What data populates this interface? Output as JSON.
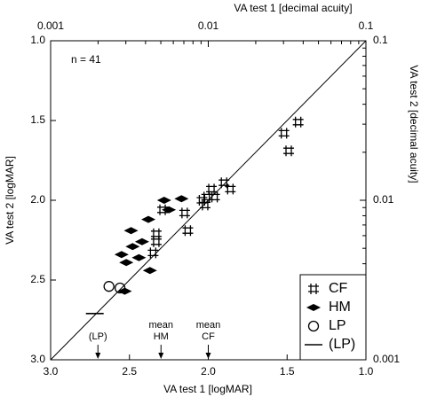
{
  "chart_data": {
    "type": "scatter",
    "xlabel": "VA test 1 [logMAR]",
    "ylabel": "VA test 2 [logMAR]",
    "x2label": "VA test 1 [decimal acuity]",
    "y2label": "VA test 2 [decimal acuity]",
    "xlim": [
      3.0,
      1.0
    ],
    "ylim": [
      3.0,
      1.0
    ],
    "xticks": [
      {
        "value": 3.0,
        "label": "3.0"
      },
      {
        "value": 2.5,
        "label": "2.5"
      },
      {
        "value": 2.0,
        "label": "2.0"
      },
      {
        "value": 1.5,
        "label": "1.5"
      },
      {
        "value": 1.0,
        "label": "1.0"
      }
    ],
    "yticks": [
      {
        "value": 1.0,
        "label": "1.0"
      },
      {
        "value": 1.5,
        "label": "1.5"
      },
      {
        "value": 2.0,
        "label": "2.0"
      },
      {
        "value": 2.5,
        "label": "2.5"
      },
      {
        "value": 3.0,
        "label": "3.0"
      }
    ],
    "x2lim": [
      0.001,
      0.1
    ],
    "x2scale": "log",
    "x2ticks": [
      0.001,
      0.01,
      0.1
    ],
    "x2minorticks": [
      0.002,
      0.003,
      0.004,
      0.005,
      0.006,
      0.007,
      0.008,
      0.009,
      0.02,
      0.03,
      0.04,
      0.05,
      0.06,
      0.07,
      0.08,
      0.09
    ],
    "y2lim": [
      0.001,
      0.1
    ],
    "y2scale": "log",
    "y2ticks": [
      0.001,
      0.01,
      0.1
    ],
    "y2minorticks": [
      0.002,
      0.003,
      0.004,
      0.005,
      0.006,
      0.007,
      0.008,
      0.009,
      0.02,
      0.03,
      0.04,
      0.05,
      0.06,
      0.07,
      0.08,
      0.09
    ],
    "identity_line": true,
    "legend": "lower right",
    "annotation": "n = 41",
    "arrows": [
      {
        "lines": [
          "(LP)"
        ],
        "x": 2.7
      },
      {
        "lines": [
          "mean",
          "HM"
        ],
        "x": 2.3
      },
      {
        "lines": [
          "mean",
          "CF"
        ],
        "x": 2.0
      }
    ],
    "series": [
      {
        "name": "CF",
        "marker": "hash",
        "color": "#000000",
        "x": [
          1.43,
          1.52,
          1.49,
          2.29,
          2.15,
          2.13,
          2.01,
          1.98,
          1.9,
          1.86,
          2.04,
          2.33,
          2.33,
          2.35,
          1.96,
          2.02
        ],
        "y": [
          1.51,
          1.58,
          1.69,
          2.06,
          2.08,
          2.19,
          1.98,
          1.93,
          1.89,
          1.93,
          2.0,
          2.21,
          2.26,
          2.33,
          1.98,
          2.03
        ]
      },
      {
        "name": "HM",
        "marker": "diamond",
        "color": "#000000",
        "x": [
          2.17,
          2.28,
          2.25,
          2.49,
          2.38,
          2.42,
          2.48,
          2.44,
          2.55,
          2.52,
          2.37,
          2.53
        ],
        "y": [
          1.99,
          2.0,
          2.06,
          2.19,
          2.12,
          2.26,
          2.29,
          2.36,
          2.34,
          2.39,
          2.44,
          2.57
        ]
      },
      {
        "name": "LP",
        "marker": "circle",
        "color": "#000000",
        "x": [
          2.63,
          2.56
        ],
        "y": [
          2.54,
          2.55
        ]
      },
      {
        "name": "(LP)",
        "marker": "dash",
        "color": "#000000",
        "x": [
          2.72
        ],
        "y": [
          2.71
        ]
      }
    ]
  }
}
